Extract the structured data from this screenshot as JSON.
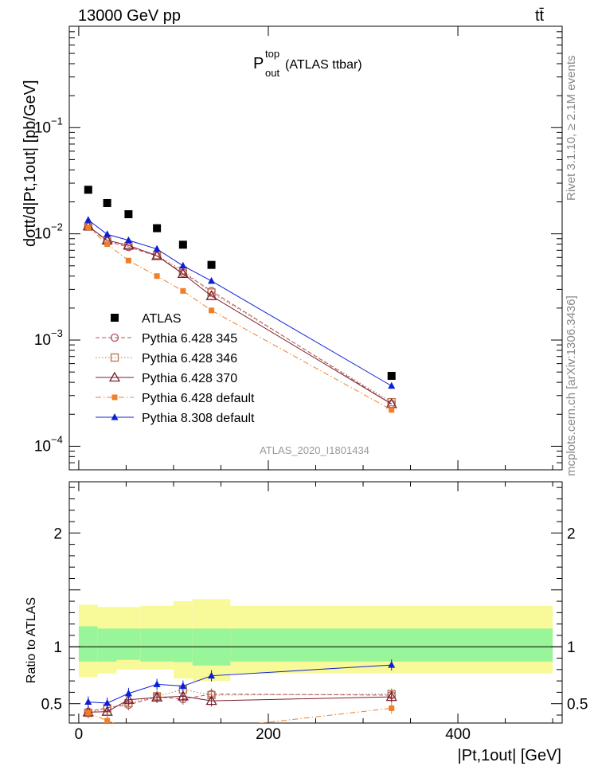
{
  "header": {
    "left": "13000 GeV pp",
    "right": "tt̄"
  },
  "side": {
    "rivet": "Rivet 3.1.10, ≥ 2.1M events",
    "mcplots": "mcplots.cern.ch [arXiv:1306.3436]"
  },
  "plot_title": {
    "main": "P",
    "sup": "top",
    "sub": "out",
    "rest": "(ATLAS ttbar)"
  },
  "analysis_id": "ATLAS_2020_I1801434",
  "colors": {
    "ATLAS": "#000000",
    "p345": "#b5525c",
    "p346": "#b8734a",
    "p370": "#7a1f2e",
    "p6def": "#f07f2a",
    "p8def": "#0b1fd6",
    "band_inner": "#99f599",
    "band_outer": "#f8fa99"
  },
  "chart_data": [
    {
      "type": "line",
      "panel": "main",
      "y_scale": "log",
      "ylim": [
        6e-05,
        0.9
      ],
      "xlim": [
        -10,
        510
      ],
      "ylabel": "dσtt/d|Pt,1out| [pb/GeV]",
      "y_ticks": [
        {
          "v": 0.1,
          "base": "10",
          "exp": "−1"
        },
        {
          "v": 0.01,
          "base": "10",
          "exp": "−2"
        },
        {
          "v": 0.001,
          "base": "10",
          "exp": "−3"
        },
        {
          "v": 0.0001,
          "base": "10",
          "exp": "−4"
        }
      ],
      "x": [
        10,
        30,
        52.5,
        82.5,
        110,
        140,
        330
      ],
      "legend_position": "lower-left",
      "series": [
        {
          "name": "ATLAS",
          "key": "ATLAS",
          "marker": "square-filled",
          "line": "none",
          "values": [
            0.026,
            0.0195,
            0.0153,
            0.0113,
            0.0079,
            0.0051,
            0.00046
          ]
        },
        {
          "name": "Pythia 6.428 345",
          "key": "p345",
          "marker": "circle-open",
          "line": "dashed",
          "values": [
            0.0118,
            0.0085,
            0.0075,
            0.0062,
            0.0043,
            0.0029,
            0.00025
          ]
        },
        {
          "name": "Pythia 6.428 346",
          "key": "p346",
          "marker": "square-open",
          "line": "dotted",
          "values": [
            0.0117,
            0.0086,
            0.0077,
            0.0063,
            0.0045,
            0.0028,
            0.00026
          ]
        },
        {
          "name": "Pythia 6.428 370",
          "key": "p370",
          "marker": "triangle-open",
          "line": "solid",
          "values": [
            0.0118,
            0.0087,
            0.0078,
            0.0062,
            0.0042,
            0.0026,
            0.00025
          ]
        },
        {
          "name": "Pythia 6.428 default",
          "key": "p6def",
          "marker": "square-filled-small",
          "line": "dashdot",
          "values": [
            0.0115,
            0.008,
            0.0056,
            0.004,
            0.0029,
            0.0019,
            0.00022
          ]
        },
        {
          "name": "Pythia 8.308 default",
          "key": "p8def",
          "marker": "triangle-filled",
          "line": "solid",
          "values": [
            0.0135,
            0.0099,
            0.0087,
            0.0072,
            0.005,
            0.0036,
            0.00037
          ]
        }
      ]
    },
    {
      "type": "line",
      "panel": "ratio",
      "ylabel": "Ratio to ATLAS",
      "xlabel": "|Pt,1out| [GeV]",
      "xlim": [
        -10,
        510
      ],
      "ylim": [
        0.33,
        2.45
      ],
      "y_ticks": [
        0.5,
        1,
        2
      ],
      "y_tick_labels": [
        "0.5",
        "1",
        "2"
      ],
      "x_ticks": [
        0,
        200,
        400
      ],
      "x_tick_labels": [
        "0",
        "200",
        "400"
      ],
      "x": [
        10,
        30,
        52.5,
        82.5,
        110,
        140,
        330
      ],
      "bands": {
        "edges": [
          0,
          20,
          40,
          65,
          100,
          120,
          160,
          500
        ],
        "inner_lo": [
          0.87,
          0.87,
          0.885,
          0.87,
          0.865,
          0.835,
          0.87
        ],
        "inner_hi": [
          1.18,
          1.16,
          1.16,
          1.16,
          1.16,
          1.16,
          1.16
        ],
        "outer_lo": [
          0.735,
          0.765,
          0.8,
          0.8,
          0.72,
          0.7,
          0.765
        ],
        "outer_hi": [
          1.37,
          1.35,
          1.35,
          1.36,
          1.4,
          1.42,
          1.36
        ]
      },
      "series": [
        {
          "name": "Pythia 6.428 345",
          "key": "p345",
          "marker": "circle-open",
          "line": "dashed",
          "values": [
            0.43,
            0.465,
            0.49,
            0.56,
            0.54,
            0.585,
            0.575
          ]
        },
        {
          "name": "Pythia 6.428 346",
          "key": "p346",
          "marker": "square-open",
          "line": "dotted",
          "values": [
            0.42,
            0.46,
            0.505,
            0.565,
            0.625,
            0.575,
            0.585
          ]
        },
        {
          "name": "Pythia 6.428 370",
          "key": "p370",
          "marker": "triangle-open",
          "line": "solid",
          "values": [
            0.425,
            0.43,
            0.535,
            0.555,
            0.565,
            0.525,
            0.56
          ]
        },
        {
          "name": "Pythia 6.428 default",
          "key": "p6def",
          "marker": "square-filled-small",
          "line": "dashdot",
          "values": [
            0.42,
            0.35,
            0.28,
            0.28,
            0.28,
            0.28,
            0.46
          ]
        },
        {
          "name": "Pythia 8.308 default",
          "key": "p8def",
          "marker": "triangle-filled",
          "line": "solid",
          "values": [
            0.515,
            0.505,
            0.59,
            0.67,
            0.655,
            0.745,
            0.84
          ]
        }
      ]
    }
  ]
}
